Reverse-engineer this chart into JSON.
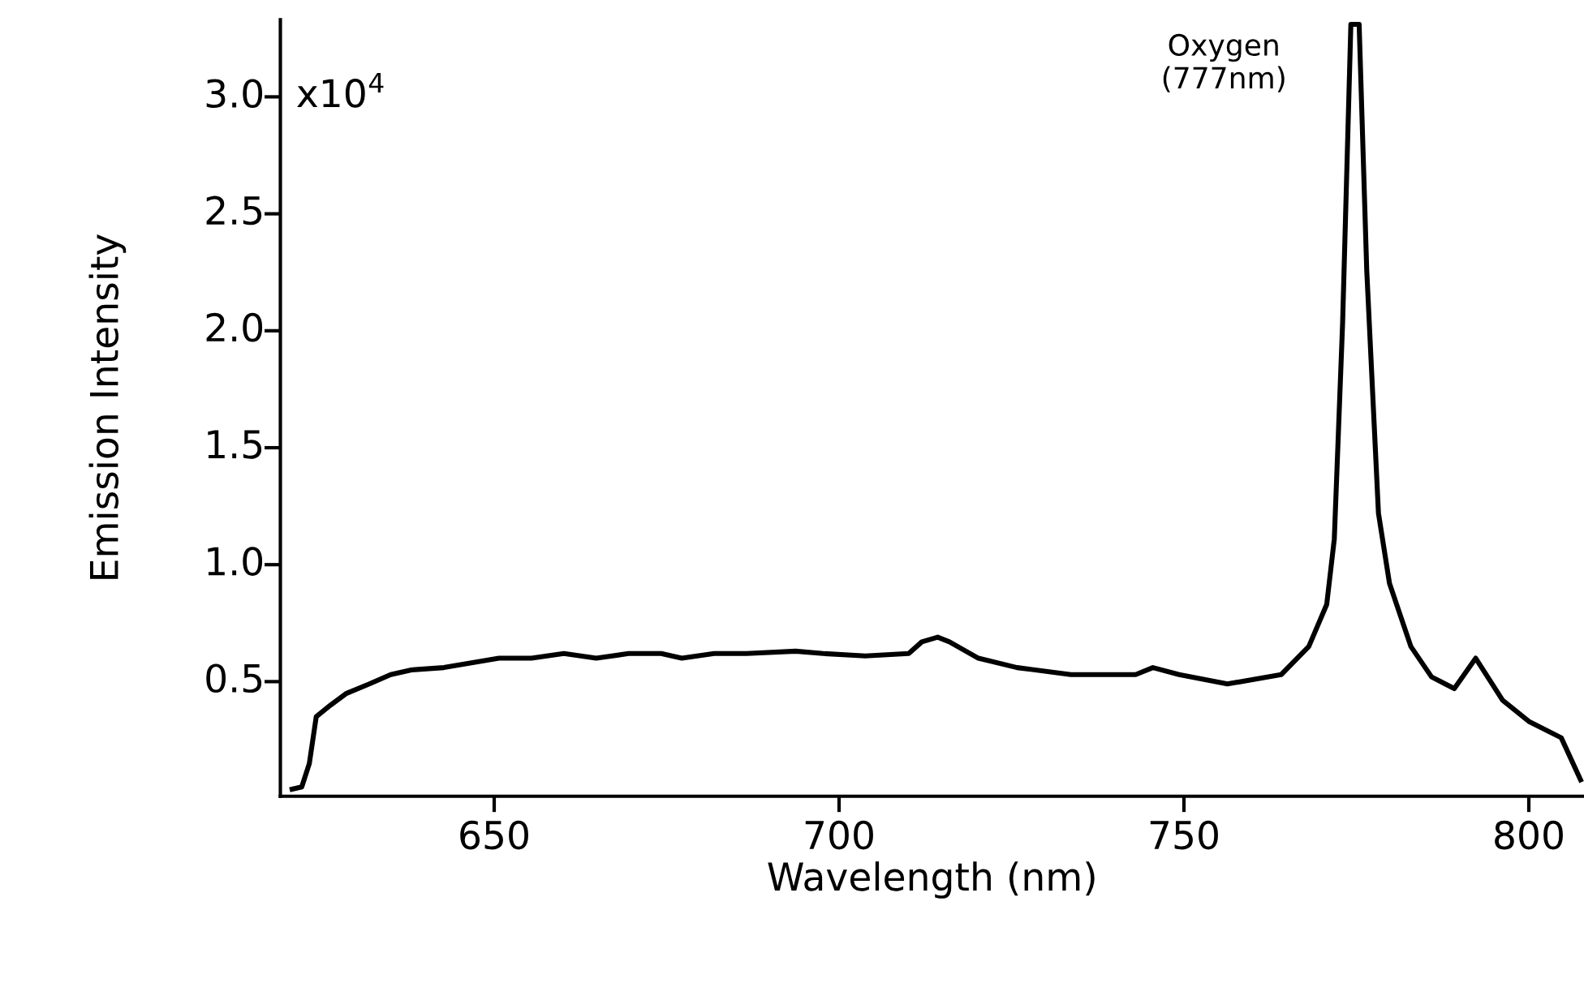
{
  "chart_data": {
    "type": "line",
    "xlabel": "Wavelength (nm)",
    "ylabel": "Emission Intensity",
    "xlim": [
      619,
      808
    ],
    "ylim": [
      0.01,
      3.33
    ],
    "xticks": [
      650,
      700,
      750,
      800
    ],
    "yticks": [
      0.5,
      {
        "value": 1,
        "label": "1.0"
      },
      1.5,
      {
        "value": 2,
        "label": "2.0"
      },
      2.5,
      {
        "value": 3,
        "label": "3.0"
      }
    ],
    "annotations": [
      "x10$^{4}$",
      {
        "text": "Oxygen\n(777nm)",
        "x": 775.4,
        "y": 3.31
      }
    ],
    "grid": false,
    "legend": false,
    "marker": "none",
    "line_style": "solid",
    "series": [
      {
        "color": "#000000",
        "x": [
          620.7,
          622.1,
          623.2,
          624.2,
          626.3,
          628.6,
          631.9,
          635.0,
          638.0,
          642.7,
          646.7,
          650.7,
          655.4,
          660.1,
          664.8,
          669.5,
          674.2,
          677.2,
          681.9,
          686.6,
          693.7,
          697.7,
          703.8,
          710.1,
          712.0,
          714.3,
          716.0,
          720.2,
          725.8,
          733.6,
          743.0,
          745.5,
          749.3,
          756.3,
          764.1,
          768.1,
          770.7,
          771.8,
          773.0,
          774.2,
          775.4,
          776.5,
          778.2,
          779.8,
          782.9,
          785.9,
          789.2,
          792.3,
          796.2,
          800.0,
          804.7,
          807.5
        ],
        "values": [
          0.04,
          0.05,
          0.15,
          0.35,
          0.4,
          0.45,
          0.49,
          0.53,
          0.55,
          0.56,
          0.58,
          0.6,
          0.6,
          0.62,
          0.6,
          0.62,
          0.62,
          0.6,
          0.62,
          0.62,
          0.63,
          0.62,
          0.61,
          0.62,
          0.67,
          0.69,
          0.67,
          0.6,
          0.56,
          0.53,
          0.53,
          0.56,
          0.53,
          0.49,
          0.53,
          0.65,
          0.83,
          1.11,
          2.03,
          3.31,
          3.31,
          2.26,
          1.22,
          0.92,
          0.65,
          0.52,
          0.47,
          0.6,
          0.42,
          0.33,
          0.26,
          0.08
        ]
      }
    ]
  }
}
